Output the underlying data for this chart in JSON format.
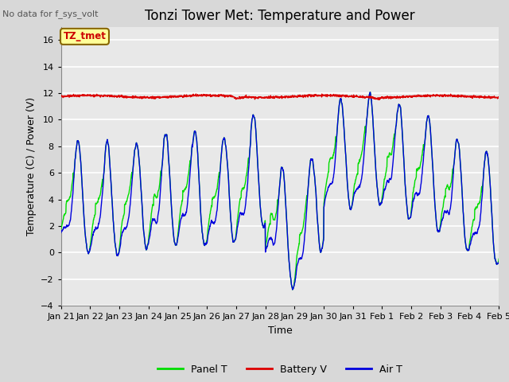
{
  "title": "Tonzi Tower Met: Temperature and Power",
  "no_data_text": "No data for f_sys_volt",
  "xlabel": "Time",
  "ylabel": "Temperature (C) / Power (V)",
  "ylim": [
    -4,
    17
  ],
  "yticks": [
    -4,
    -2,
    0,
    2,
    4,
    6,
    8,
    10,
    12,
    14,
    16
  ],
  "bg_color": "#d8d8d8",
  "plot_bg_color": "#e8e8e8",
  "grid_color": "#ffffff",
  "panel_t_color": "#00dd00",
  "battery_v_color": "#dd0000",
  "air_t_color": "#0000dd",
  "annotation_text": "TZ_tmet",
  "annotation_color": "#cc0000",
  "annotation_bg": "#ffff99",
  "num_days": 15,
  "n_points": 2000,
  "x_start": 0,
  "x_end": 15,
  "xtick_labels": [
    "Jan 21",
    "Jan 22",
    "Jan 23",
    "Jan 24",
    "Jan 25",
    "Jan 26",
    "Jan 27",
    "Jan 28",
    "Jan 29",
    "Jan 30",
    "Jan 31",
    "Feb 1",
    "Feb 2",
    "Feb 3",
    "Feb 4",
    "Feb 5"
  ],
  "xtick_positions": [
    0,
    1,
    2,
    3,
    4,
    5,
    6,
    7,
    8,
    9,
    10,
    11,
    12,
    13,
    14,
    15
  ],
  "legend_ncol": 3,
  "title_fontsize": 12,
  "axis_fontsize": 9,
  "tick_fontsize": 8,
  "line_width": 1.0,
  "battery_v_value": 11.75
}
